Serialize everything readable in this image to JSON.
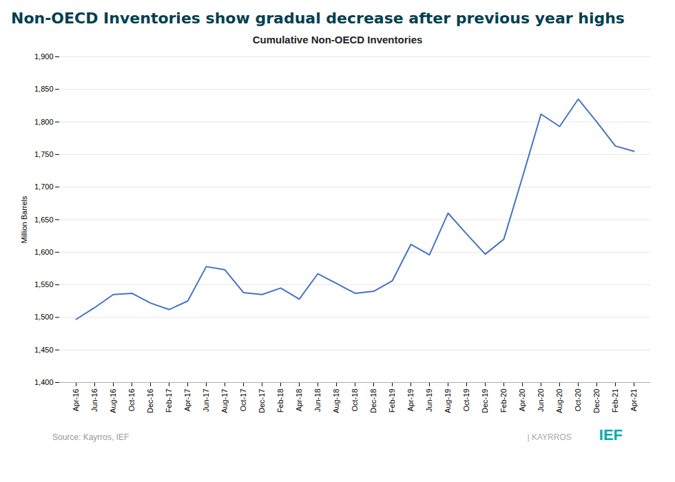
{
  "chart_data": {
    "type": "line",
    "title": "Non-OECD Inventories show gradual decrease after previous year highs",
    "subtitle": "Cumulative Non-OECD Inventories",
    "ylabel": "Million Barrels",
    "annotations": [
      "Source: Kayrros, IEF",
      "| KAYRROS",
      "IEF"
    ],
    "categories": [
      "Apr-16",
      "Jun-16",
      "Aug-16",
      "Oct-16",
      "Dec-16",
      "Feb-17",
      "Apr-17",
      "Jun-17",
      "Aug-17",
      "Oct-17",
      "Dec-17",
      "Feb-18",
      "Apr-18",
      "Jun-18",
      "Aug-18",
      "Oct-18",
      "Dec-18",
      "Feb-19",
      "Apr-19",
      "Jun-19",
      "Aug-19",
      "Oct-19",
      "Dec-19",
      "Feb-20",
      "Apr-20",
      "Jun-20",
      "Aug-20",
      "Oct-20",
      "Dec-20",
      "Feb-21",
      "Apr-21"
    ],
    "values": [
      1497,
      1515,
      1535,
      1537,
      1522,
      1512,
      1525,
      1578,
      1573,
      1538,
      1535,
      1545,
      1528,
      1567,
      1552,
      1537,
      1540,
      1556,
      1612,
      1596,
      1660,
      1628,
      1597,
      1620,
      1715,
      1812,
      1793,
      1835,
      1800,
      1763,
      1755
    ],
    "color": "#4472C4",
    "ylim": [
      1400,
      1900
    ],
    "yticks": [
      {
        "value": 1400,
        "label": "1,400"
      },
      {
        "value": 1450,
        "label": "1,450"
      },
      {
        "value": 1500,
        "label": "1,500"
      },
      {
        "value": 1550,
        "label": "1,550"
      },
      {
        "value": 1600,
        "label": "1,600"
      },
      {
        "value": 1650,
        "label": "1,650"
      },
      {
        "value": 1700,
        "label": "1,700"
      },
      {
        "value": 1750,
        "label": "1,750"
      },
      {
        "value": 1800,
        "label": "1,800"
      },
      {
        "value": 1850,
        "label": "1,850"
      },
      {
        "value": 1900,
        "label": "1,900"
      }
    ],
    "grid": true
  }
}
